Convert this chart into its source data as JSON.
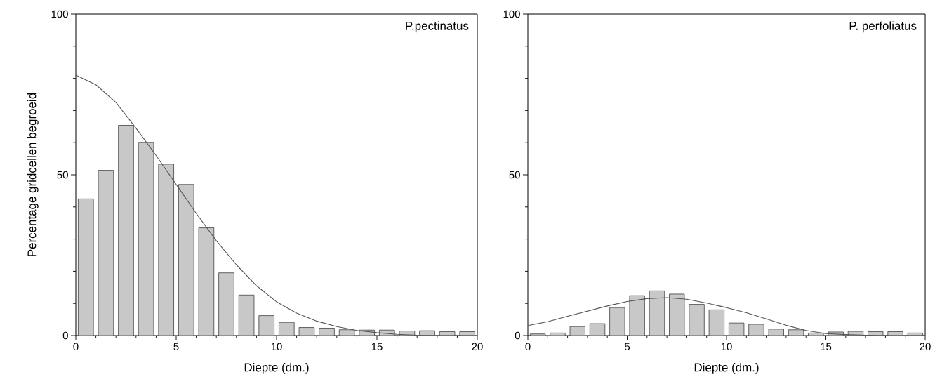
{
  "chart_data": [
    {
      "type": "histogram",
      "xlabel": "Diepte (dm.)",
      "ylabel": "Percentage gridcellen begroeid",
      "annotations": [
        "P.pectinatus"
      ],
      "bins": [
        0,
        1,
        2,
        3,
        4,
        5,
        6,
        7,
        8,
        9,
        10,
        11,
        12,
        13,
        14,
        15,
        16,
        17,
        18,
        19,
        20
      ],
      "series": [
        {
          "color": "#c8c8c8",
          "values": [
            42.5,
            51.4,
            65.4,
            60.1,
            53.3,
            47.0,
            33.5,
            19.5,
            12.6,
            6.2,
            4.1,
            2.5,
            2.3,
            1.8,
            1.7,
            1.7,
            1.4,
            1.5,
            1.2,
            1.2
          ]
        },
        {
          "type": "line",
          "color": "#555555",
          "x": [
            0,
            1,
            2,
            3,
            4,
            5,
            6,
            7,
            8,
            9,
            10,
            11,
            12,
            13,
            14,
            15,
            16,
            17,
            18,
            20
          ],
          "values": [
            81,
            78,
            72.5,
            64.5,
            56,
            47,
            38,
            29.5,
            22,
            15.5,
            10.5,
            7,
            4.5,
            2.8,
            1.6,
            0.9,
            0.4,
            0.1,
            0,
            0
          ]
        }
      ],
      "xlim": [
        0,
        20
      ],
      "ylim": [
        0,
        100
      ],
      "xticks": [
        0,
        {
          "value": 1,
          "label": null
        },
        {
          "value": 2,
          "label": null
        },
        {
          "value": 3,
          "label": null
        },
        {
          "value": 4,
          "label": null
        },
        5,
        {
          "value": 6,
          "label": null
        },
        {
          "value": 7,
          "label": null
        },
        {
          "value": 8,
          "label": null
        },
        {
          "value": 9,
          "label": null
        },
        10,
        {
          "value": 11,
          "label": null
        },
        {
          "value": 12,
          "label": null
        },
        {
          "value": 13,
          "label": null
        },
        {
          "value": 14,
          "label": null
        },
        15,
        {
          "value": 16,
          "label": null
        },
        {
          "value": 17,
          "label": null
        },
        {
          "value": 18,
          "label": null
        },
        {
          "value": 19,
          "label": null
        },
        20
      ],
      "yticks": [
        0,
        {
          "value": 10,
          "label": null
        },
        {
          "value": 20,
          "label": null
        },
        {
          "value": 30,
          "label": null
        },
        {
          "value": 40,
          "label": null
        },
        50,
        {
          "value": 60,
          "label": null
        },
        {
          "value": 70,
          "label": null
        },
        {
          "value": 80,
          "label": null
        },
        {
          "value": 90,
          "label": null
        },
        100
      ]
    },
    {
      "type": "histogram",
      "xlabel": "Diepte (dm.)",
      "annotations": [
        "P. perfoliatus"
      ],
      "bins": [
        0,
        1,
        2,
        3,
        4,
        5,
        6,
        7,
        8,
        9,
        10,
        11,
        12,
        13,
        14,
        15,
        16,
        17,
        18,
        19,
        20
      ],
      "series": [
        {
          "color": "#c8c8c8",
          "values": [
            0.5,
            0.8,
            2.8,
            3.7,
            8.7,
            12.4,
            13.9,
            12.9,
            9.7,
            8.0,
            3.9,
            3.5,
            2.0,
            1.8,
            0.8,
            1.1,
            1.3,
            1.2,
            1.2,
            0.8
          ]
        },
        {
          "type": "line",
          "color": "#555555",
          "x": [
            0,
            1,
            2,
            3,
            4,
            5,
            6,
            7,
            8,
            9,
            10,
            11,
            12,
            13,
            14,
            15,
            16,
            17,
            18,
            20
          ],
          "values": [
            3.1,
            4.3,
            6,
            7.6,
            9.2,
            10.6,
            11.5,
            11.8,
            11.3,
            10.1,
            8.7,
            7.1,
            5.2,
            3.2,
            1.6,
            0.6,
            0.3,
            0.1,
            0,
            0
          ]
        }
      ],
      "xlim": [
        0,
        20
      ],
      "ylim": [
        0,
        100
      ],
      "xticks": [
        0,
        {
          "value": 1,
          "label": null
        },
        {
          "value": 2,
          "label": null
        },
        {
          "value": 3,
          "label": null
        },
        {
          "value": 4,
          "label": null
        },
        5,
        {
          "value": 6,
          "label": null
        },
        {
          "value": 7,
          "label": null
        },
        {
          "value": 8,
          "label": null
        },
        {
          "value": 9,
          "label": null
        },
        10,
        {
          "value": 11,
          "label": null
        },
        {
          "value": 12,
          "label": null
        },
        {
          "value": 13,
          "label": null
        },
        {
          "value": 14,
          "label": null
        },
        15,
        {
          "value": 16,
          "label": null
        },
        {
          "value": 17,
          "label": null
        },
        {
          "value": 18,
          "label": null
        },
        {
          "value": 19,
          "label": null
        },
        20
      ],
      "yticks": [
        0,
        {
          "value": 10,
          "label": null
        },
        {
          "value": 20,
          "label": null
        },
        {
          "value": 30,
          "label": null
        },
        {
          "value": 40,
          "label": null
        },
        50,
        {
          "value": 60,
          "label": null
        },
        {
          "value": 70,
          "label": null
        },
        {
          "value": 80,
          "label": null
        },
        {
          "value": 90,
          "label": null
        },
        100
      ]
    }
  ]
}
